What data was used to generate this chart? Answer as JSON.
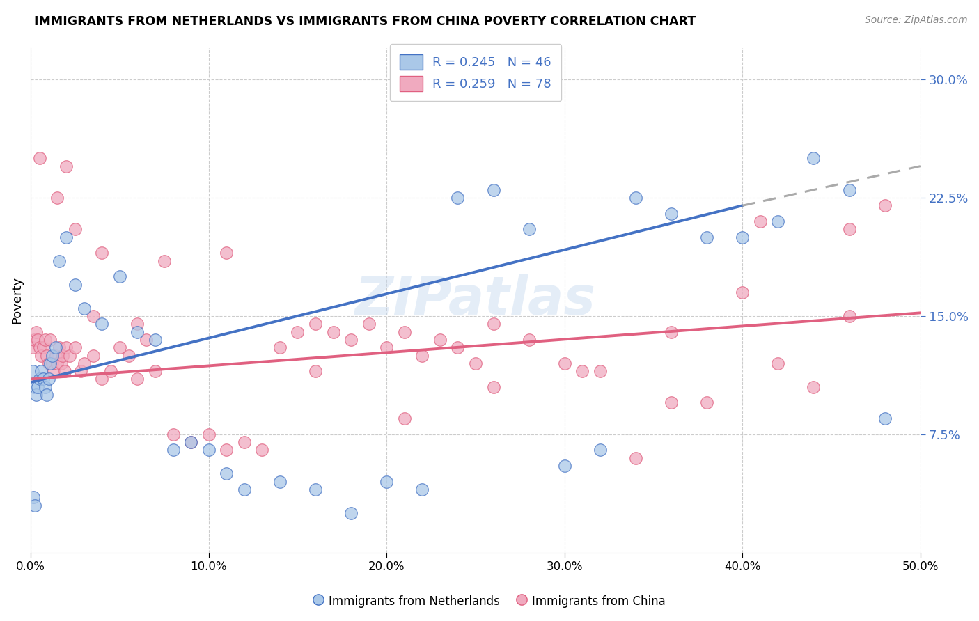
{
  "title": "IMMIGRANTS FROM NETHERLANDS VS IMMIGRANTS FROM CHINA POVERTY CORRELATION CHART",
  "source": "Source: ZipAtlas.com",
  "ylabel": "Poverty",
  "ytick_vals": [
    7.5,
    15.0,
    22.5,
    30.0
  ],
  "xrange": [
    0,
    50
  ],
  "yrange": [
    0,
    32
  ],
  "legend1_label": "R = 0.245   N = 46",
  "legend2_label": "R = 0.259   N = 78",
  "color_nl": "#aac8e8",
  "color_cn": "#f0aabf",
  "line_nl": "#4472c4",
  "line_cn": "#e06080",
  "line_dash": "#aaaaaa",
  "watermark": "ZIPatlas",
  "nl_x": [
    0.1,
    0.2,
    0.3,
    0.4,
    0.5,
    0.6,
    0.7,
    0.8,
    0.9,
    1.0,
    1.1,
    1.2,
    1.4,
    1.6,
    2.0,
    2.5,
    3.0,
    4.0,
    5.0,
    6.0,
    7.0,
    8.0,
    9.0,
    10.0,
    11.0,
    12.0,
    14.0,
    16.0,
    18.0,
    20.0,
    22.0,
    24.0,
    26.0,
    28.0,
    30.0,
    32.0,
    34.0,
    36.0,
    38.0,
    40.0,
    42.0,
    44.0,
    46.0,
    48.0,
    0.15,
    0.25
  ],
  "nl_y": [
    11.5,
    10.5,
    10.0,
    10.5,
    11.0,
    11.5,
    11.0,
    10.5,
    10.0,
    11.0,
    12.0,
    12.5,
    13.0,
    18.5,
    20.0,
    17.0,
    15.5,
    14.5,
    17.5,
    14.0,
    13.5,
    6.5,
    7.0,
    6.5,
    5.0,
    4.0,
    4.5,
    4.0,
    2.5,
    4.5,
    4.0,
    22.5,
    23.0,
    20.5,
    5.5,
    6.5,
    22.5,
    21.5,
    20.0,
    20.0,
    21.0,
    25.0,
    23.0,
    8.5,
    3.5,
    3.0
  ],
  "cn_x": [
    0.1,
    0.2,
    0.3,
    0.4,
    0.5,
    0.6,
    0.7,
    0.8,
    0.9,
    1.0,
    1.1,
    1.2,
    1.3,
    1.4,
    1.5,
    1.6,
    1.7,
    1.8,
    1.9,
    2.0,
    2.2,
    2.5,
    2.8,
    3.0,
    3.5,
    4.0,
    4.5,
    5.0,
    5.5,
    6.0,
    6.5,
    7.0,
    8.0,
    9.0,
    10.0,
    11.0,
    12.0,
    13.0,
    14.0,
    15.0,
    16.0,
    17.0,
    18.0,
    19.0,
    20.0,
    21.0,
    22.0,
    23.0,
    24.0,
    25.0,
    26.0,
    28.0,
    30.0,
    32.0,
    34.0,
    36.0,
    38.0,
    40.0,
    42.0,
    44.0,
    46.0,
    48.0,
    0.5,
    1.5,
    2.5,
    4.0,
    7.5,
    11.0,
    16.0,
    21.0,
    26.0,
    31.0,
    36.0,
    41.0,
    46.0,
    2.0,
    3.5,
    6.0
  ],
  "cn_y": [
    13.0,
    13.5,
    14.0,
    13.5,
    13.0,
    12.5,
    13.0,
    13.5,
    12.5,
    12.0,
    13.5,
    12.0,
    11.5,
    12.5,
    12.0,
    13.0,
    12.0,
    12.5,
    11.5,
    13.0,
    12.5,
    13.0,
    11.5,
    12.0,
    12.5,
    11.0,
    11.5,
    13.0,
    12.5,
    11.0,
    13.5,
    11.5,
    7.5,
    7.0,
    7.5,
    6.5,
    7.0,
    6.5,
    13.0,
    14.0,
    14.5,
    14.0,
    13.5,
    14.5,
    13.0,
    14.0,
    12.5,
    13.5,
    13.0,
    12.0,
    14.5,
    13.5,
    12.0,
    11.5,
    6.0,
    14.0,
    9.5,
    16.5,
    12.0,
    10.5,
    15.0,
    22.0,
    25.0,
    22.5,
    20.5,
    19.0,
    18.5,
    19.0,
    11.5,
    8.5,
    10.5,
    11.5,
    9.5,
    21.0,
    20.5,
    24.5,
    15.0,
    14.5
  ]
}
